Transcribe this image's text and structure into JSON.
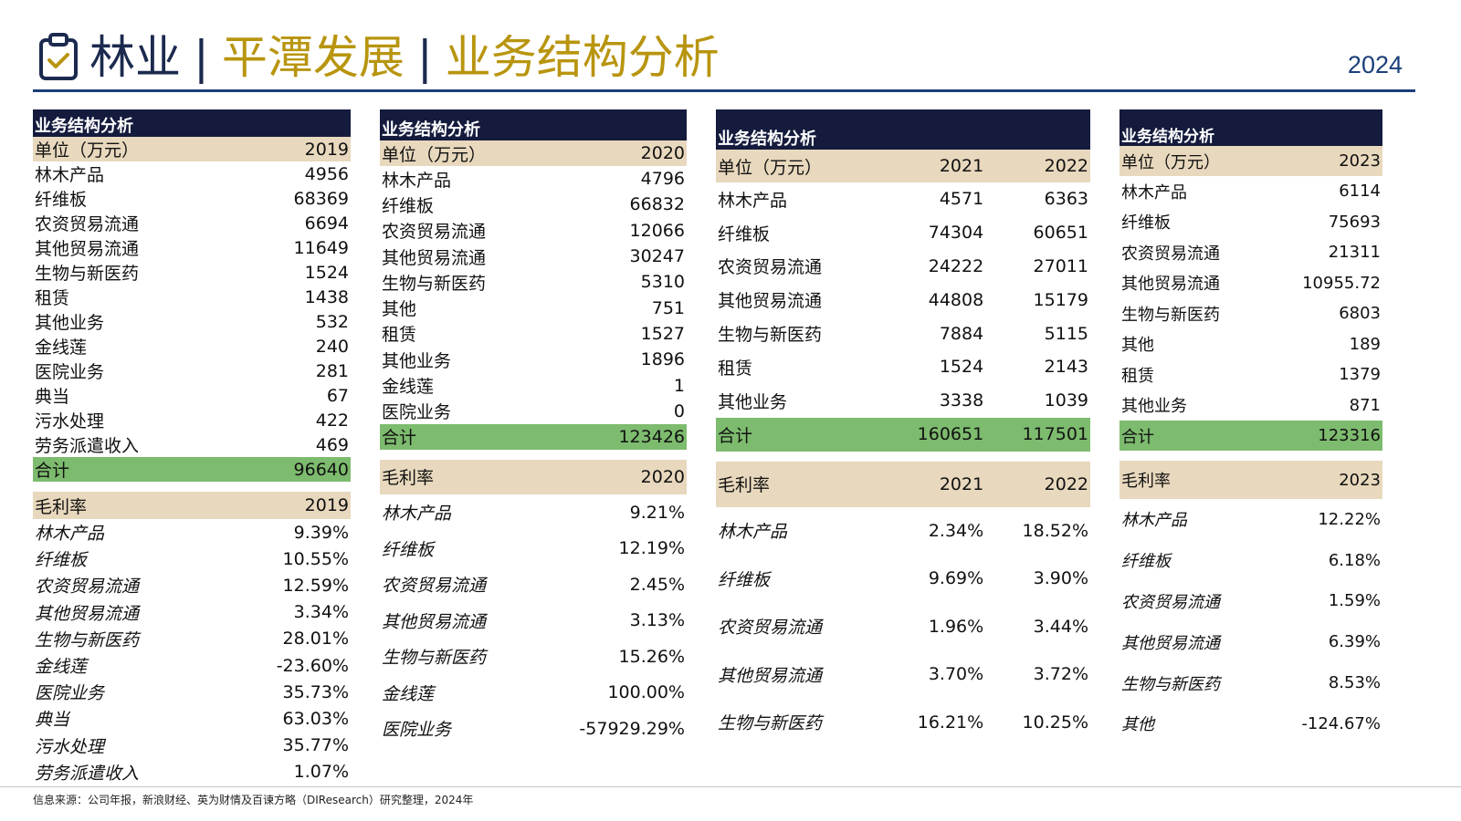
{
  "header": {
    "title_part1": "林业",
    "separator": "|",
    "title_part2": "平潭发展",
    "title_part3": "业务结构分析",
    "year": "2024",
    "icon": "clipboard-check-icon"
  },
  "colors": {
    "navy": "#141b3d",
    "tan": "#e8d8bd",
    "green": "#7dbb6e",
    "gold": "#b8950f"
  },
  "panels": [
    {
      "section_title": "业务结构分析",
      "unit_label": "单位（万元）",
      "years": [
        "2019"
      ],
      "rows": [
        {
          "name": "林木产品",
          "values": [
            "4956"
          ]
        },
        {
          "name": "纤维板",
          "values": [
            "68369"
          ]
        },
        {
          "name": "农资贸易流通",
          "values": [
            "6694"
          ]
        },
        {
          "name": "其他贸易流通",
          "values": [
            "11649"
          ]
        },
        {
          "name": "生物与新医药",
          "values": [
            "1524"
          ]
        },
        {
          "name": "租赁",
          "values": [
            "1438"
          ]
        },
        {
          "name": "其他业务",
          "values": [
            "532"
          ]
        },
        {
          "name": "金线莲",
          "values": [
            "240"
          ]
        },
        {
          "name": "医院业务",
          "values": [
            "281"
          ]
        },
        {
          "name": "典当",
          "values": [
            "67"
          ]
        },
        {
          "name": "污水处理",
          "values": [
            "422"
          ]
        },
        {
          "name": "劳务派遣收入",
          "values": [
            "469"
          ]
        }
      ],
      "total": {
        "name": "合计",
        "values": [
          "96640"
        ]
      },
      "margin_label": "毛利率",
      "margin_rows": [
        {
          "name": "林木产品",
          "values": [
            "9.39%"
          ]
        },
        {
          "name": "纤维板",
          "values": [
            "10.55%"
          ]
        },
        {
          "name": "农资贸易流通",
          "values": [
            "12.59%"
          ]
        },
        {
          "name": "其他贸易流通",
          "values": [
            "3.34%"
          ]
        },
        {
          "name": "生物与新医药",
          "values": [
            "28.01%"
          ]
        },
        {
          "name": "金线莲",
          "values": [
            "-23.60%"
          ]
        },
        {
          "name": "医院业务",
          "values": [
            "35.73%"
          ]
        },
        {
          "name": "典当",
          "values": [
            "63.03%"
          ]
        },
        {
          "name": "污水处理",
          "values": [
            "35.77%"
          ]
        },
        {
          "name": "劳务派遣收入",
          "values": [
            "1.07%"
          ]
        }
      ]
    },
    {
      "section_title": "业务结构分析",
      "unit_label": "单位（万元）",
      "years": [
        "2020"
      ],
      "rows": [
        {
          "name": "林木产品",
          "values": [
            "4796"
          ]
        },
        {
          "name": "纤维板",
          "values": [
            "66832"
          ]
        },
        {
          "name": "农资贸易流通",
          "values": [
            "12066"
          ]
        },
        {
          "name": "其他贸易流通",
          "values": [
            "30247"
          ]
        },
        {
          "name": "生物与新医药",
          "values": [
            "5310"
          ]
        },
        {
          "name": "其他",
          "values": [
            "751"
          ]
        },
        {
          "name": "租赁",
          "values": [
            "1527"
          ]
        },
        {
          "name": "其他业务",
          "values": [
            "1896"
          ]
        },
        {
          "name": "金线莲",
          "values": [
            "1"
          ]
        },
        {
          "name": "医院业务",
          "values": [
            "0"
          ]
        }
      ],
      "total": {
        "name": "合计",
        "values": [
          "123426"
        ]
      },
      "margin_label": "毛利率",
      "margin_rows": [
        {
          "name": "林木产品",
          "values": [
            "9.21%"
          ]
        },
        {
          "name": "纤维板",
          "values": [
            "12.19%"
          ]
        },
        {
          "name": "农资贸易流通",
          "values": [
            "2.45%"
          ]
        },
        {
          "name": "其他贸易流通",
          "values": [
            "3.13%"
          ]
        },
        {
          "name": "生物与新医药",
          "values": [
            "15.26%"
          ]
        },
        {
          "name": "金线莲",
          "values": [
            "100.00%"
          ]
        },
        {
          "name": "医院业务",
          "values": [
            "-57929.29%"
          ]
        }
      ]
    },
    {
      "section_title": "业务结构分析",
      "unit_label": "单位（万元）",
      "years": [
        "2021",
        "2022"
      ],
      "rows": [
        {
          "name": "林木产品",
          "values": [
            "4571",
            "6363"
          ]
        },
        {
          "name": "纤维板",
          "values": [
            "74304",
            "60651"
          ]
        },
        {
          "name": "农资贸易流通",
          "values": [
            "24222",
            "27011"
          ]
        },
        {
          "name": "其他贸易流通",
          "values": [
            "44808",
            "15179"
          ]
        },
        {
          "name": "生物与新医药",
          "values": [
            "7884",
            "5115"
          ]
        },
        {
          "name": "租赁",
          "values": [
            "1524",
            "2143"
          ]
        },
        {
          "name": "其他业务",
          "values": [
            "3338",
            "1039"
          ]
        }
      ],
      "total": {
        "name": "合计",
        "values": [
          "160651",
          "117501"
        ]
      },
      "margin_label": "毛利率",
      "margin_rows": [
        {
          "name": "林木产品",
          "values": [
            "2.34%",
            "18.52%"
          ]
        },
        {
          "name": "纤维板",
          "values": [
            "9.69%",
            "3.90%"
          ]
        },
        {
          "name": "农资贸易流通",
          "values": [
            "1.96%",
            "3.44%"
          ]
        },
        {
          "name": "其他贸易流通",
          "values": [
            "3.70%",
            "3.72%"
          ]
        },
        {
          "name": "生物与新医药",
          "values": [
            "16.21%",
            "10.25%"
          ]
        }
      ]
    },
    {
      "section_title": "业务结构分析",
      "unit_label": "单位（万元）",
      "years": [
        "2023"
      ],
      "rows": [
        {
          "name": "林木产品",
          "values": [
            "6114"
          ]
        },
        {
          "name": "纤维板",
          "values": [
            "75693"
          ]
        },
        {
          "name": "农资贸易流通",
          "values": [
            "21311"
          ]
        },
        {
          "name": "其他贸易流通",
          "values": [
            "10955.72"
          ]
        },
        {
          "name": "生物与新医药",
          "values": [
            "6803"
          ]
        },
        {
          "name": "其他",
          "values": [
            "189"
          ]
        },
        {
          "name": "租赁",
          "values": [
            "1379"
          ]
        },
        {
          "name": "其他业务",
          "values": [
            "871"
          ]
        }
      ],
      "total": {
        "name": "合计",
        "values": [
          "123316"
        ]
      },
      "margin_label": "毛利率",
      "margin_rows": [
        {
          "name": "林木产品",
          "values": [
            "12.22%"
          ]
        },
        {
          "name": "纤维板",
          "values": [
            "6.18%"
          ]
        },
        {
          "name": "农资贸易流通",
          "values": [
            "1.59%"
          ]
        },
        {
          "name": "其他贸易流通",
          "values": [
            "6.39%"
          ]
        },
        {
          "name": "生物与新医药",
          "values": [
            "8.53%"
          ]
        },
        {
          "name": "其他",
          "values": [
            "-124.67%"
          ]
        }
      ]
    }
  ],
  "footer": {
    "source": "信息来源：公司年报，新浪财经、英为财情及百谏方略（DIResearch）研究整理，2024年"
  }
}
